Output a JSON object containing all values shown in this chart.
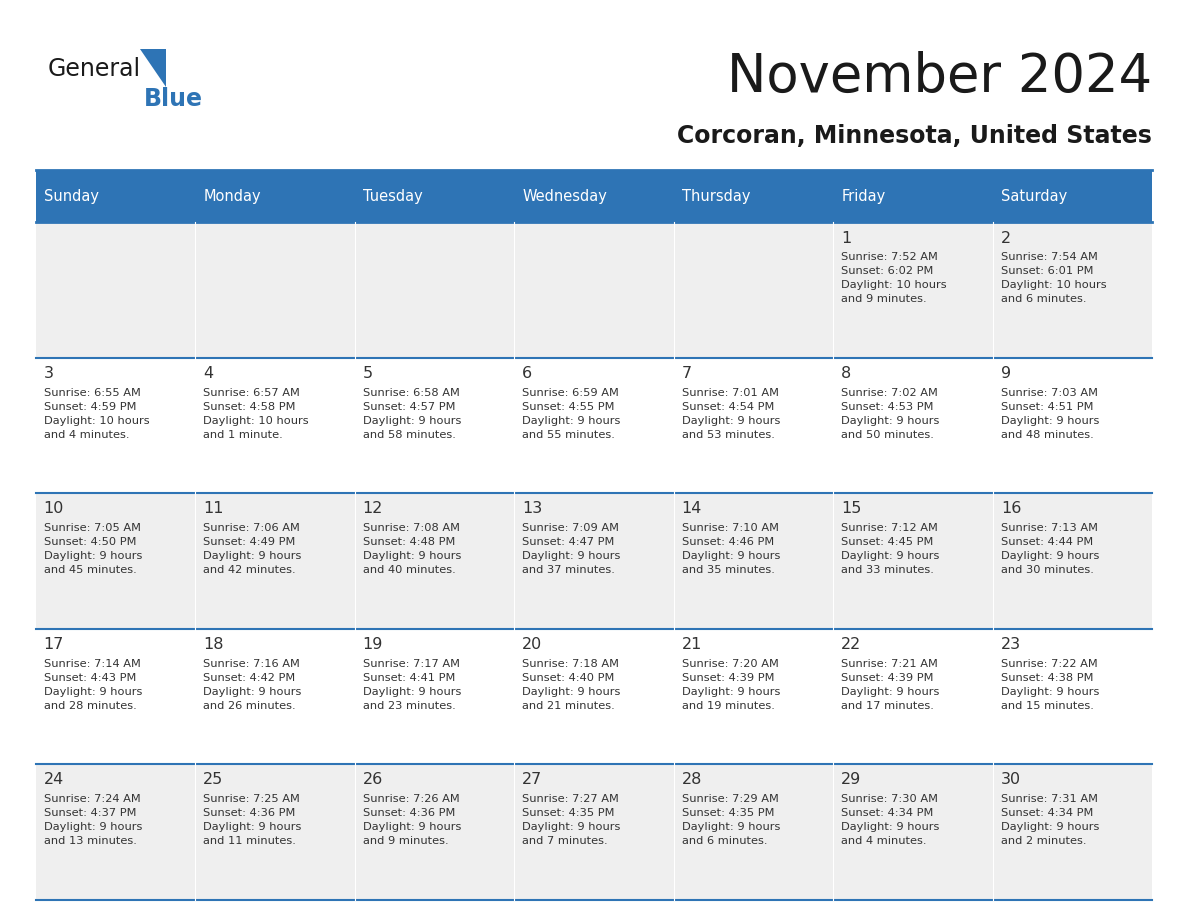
{
  "title": "November 2024",
  "subtitle": "Corcoran, Minnesota, United States",
  "header_bg_color": "#2E74B5",
  "header_text_color": "#FFFFFF",
  "cell_bg_color_odd": "#EFEFEF",
  "cell_bg_color_even": "#FFFFFF",
  "cell_text_color": "#333333",
  "border_color": "#2E74B5",
  "days_of_week": [
    "Sunday",
    "Monday",
    "Tuesday",
    "Wednesday",
    "Thursday",
    "Friday",
    "Saturday"
  ],
  "calendar": [
    [
      {
        "day": "",
        "info": ""
      },
      {
        "day": "",
        "info": ""
      },
      {
        "day": "",
        "info": ""
      },
      {
        "day": "",
        "info": ""
      },
      {
        "day": "",
        "info": ""
      },
      {
        "day": "1",
        "info": "Sunrise: 7:52 AM\nSunset: 6:02 PM\nDaylight: 10 hours\nand 9 minutes."
      },
      {
        "day": "2",
        "info": "Sunrise: 7:54 AM\nSunset: 6:01 PM\nDaylight: 10 hours\nand 6 minutes."
      }
    ],
    [
      {
        "day": "3",
        "info": "Sunrise: 6:55 AM\nSunset: 4:59 PM\nDaylight: 10 hours\nand 4 minutes."
      },
      {
        "day": "4",
        "info": "Sunrise: 6:57 AM\nSunset: 4:58 PM\nDaylight: 10 hours\nand 1 minute."
      },
      {
        "day": "5",
        "info": "Sunrise: 6:58 AM\nSunset: 4:57 PM\nDaylight: 9 hours\nand 58 minutes."
      },
      {
        "day": "6",
        "info": "Sunrise: 6:59 AM\nSunset: 4:55 PM\nDaylight: 9 hours\nand 55 minutes."
      },
      {
        "day": "7",
        "info": "Sunrise: 7:01 AM\nSunset: 4:54 PM\nDaylight: 9 hours\nand 53 minutes."
      },
      {
        "day": "8",
        "info": "Sunrise: 7:02 AM\nSunset: 4:53 PM\nDaylight: 9 hours\nand 50 minutes."
      },
      {
        "day": "9",
        "info": "Sunrise: 7:03 AM\nSunset: 4:51 PM\nDaylight: 9 hours\nand 48 minutes."
      }
    ],
    [
      {
        "day": "10",
        "info": "Sunrise: 7:05 AM\nSunset: 4:50 PM\nDaylight: 9 hours\nand 45 minutes."
      },
      {
        "day": "11",
        "info": "Sunrise: 7:06 AM\nSunset: 4:49 PM\nDaylight: 9 hours\nand 42 minutes."
      },
      {
        "day": "12",
        "info": "Sunrise: 7:08 AM\nSunset: 4:48 PM\nDaylight: 9 hours\nand 40 minutes."
      },
      {
        "day": "13",
        "info": "Sunrise: 7:09 AM\nSunset: 4:47 PM\nDaylight: 9 hours\nand 37 minutes."
      },
      {
        "day": "14",
        "info": "Sunrise: 7:10 AM\nSunset: 4:46 PM\nDaylight: 9 hours\nand 35 minutes."
      },
      {
        "day": "15",
        "info": "Sunrise: 7:12 AM\nSunset: 4:45 PM\nDaylight: 9 hours\nand 33 minutes."
      },
      {
        "day": "16",
        "info": "Sunrise: 7:13 AM\nSunset: 4:44 PM\nDaylight: 9 hours\nand 30 minutes."
      }
    ],
    [
      {
        "day": "17",
        "info": "Sunrise: 7:14 AM\nSunset: 4:43 PM\nDaylight: 9 hours\nand 28 minutes."
      },
      {
        "day": "18",
        "info": "Sunrise: 7:16 AM\nSunset: 4:42 PM\nDaylight: 9 hours\nand 26 minutes."
      },
      {
        "day": "19",
        "info": "Sunrise: 7:17 AM\nSunset: 4:41 PM\nDaylight: 9 hours\nand 23 minutes."
      },
      {
        "day": "20",
        "info": "Sunrise: 7:18 AM\nSunset: 4:40 PM\nDaylight: 9 hours\nand 21 minutes."
      },
      {
        "day": "21",
        "info": "Sunrise: 7:20 AM\nSunset: 4:39 PM\nDaylight: 9 hours\nand 19 minutes."
      },
      {
        "day": "22",
        "info": "Sunrise: 7:21 AM\nSunset: 4:39 PM\nDaylight: 9 hours\nand 17 minutes."
      },
      {
        "day": "23",
        "info": "Sunrise: 7:22 AM\nSunset: 4:38 PM\nDaylight: 9 hours\nand 15 minutes."
      }
    ],
    [
      {
        "day": "24",
        "info": "Sunrise: 7:24 AM\nSunset: 4:37 PM\nDaylight: 9 hours\nand 13 minutes."
      },
      {
        "day": "25",
        "info": "Sunrise: 7:25 AM\nSunset: 4:36 PM\nDaylight: 9 hours\nand 11 minutes."
      },
      {
        "day": "26",
        "info": "Sunrise: 7:26 AM\nSunset: 4:36 PM\nDaylight: 9 hours\nand 9 minutes."
      },
      {
        "day": "27",
        "info": "Sunrise: 7:27 AM\nSunset: 4:35 PM\nDaylight: 9 hours\nand 7 minutes."
      },
      {
        "day": "28",
        "info": "Sunrise: 7:29 AM\nSunset: 4:35 PM\nDaylight: 9 hours\nand 6 minutes."
      },
      {
        "day": "29",
        "info": "Sunrise: 7:30 AM\nSunset: 4:34 PM\nDaylight: 9 hours\nand 4 minutes."
      },
      {
        "day": "30",
        "info": "Sunrise: 7:31 AM\nSunset: 4:34 PM\nDaylight: 9 hours\nand 2 minutes."
      }
    ]
  ],
  "logo_general_color": "#1a1a1a",
  "logo_blue_color": "#2E74B5",
  "logo_triangle_color": "#2E74B5"
}
